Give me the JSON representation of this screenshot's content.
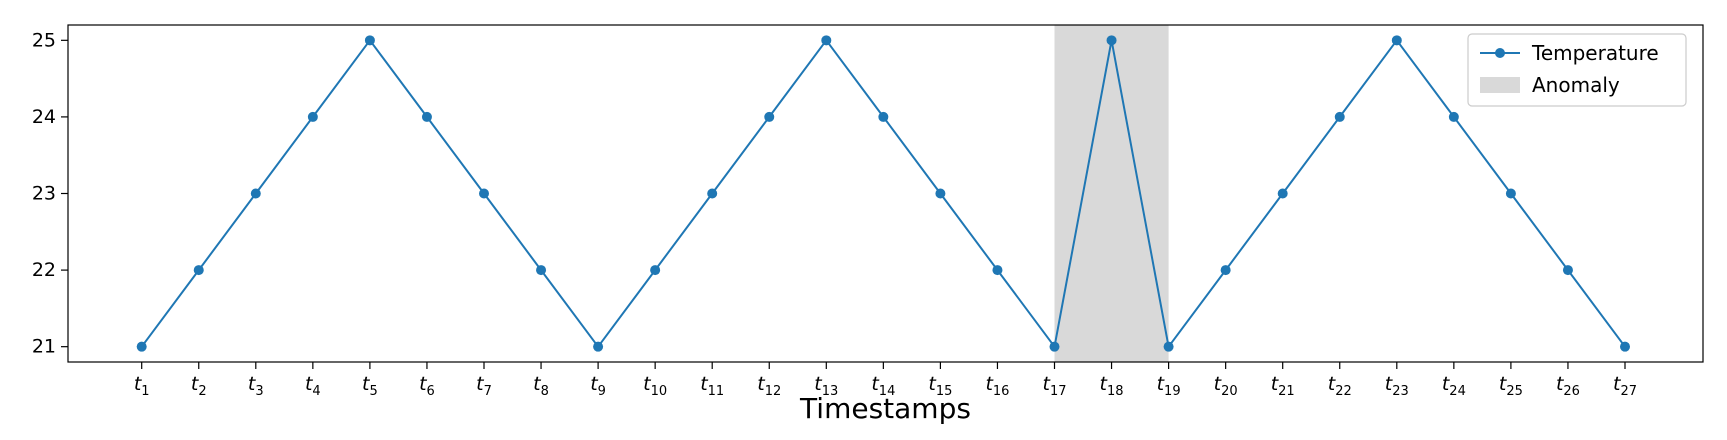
{
  "chart_data": {
    "type": "line",
    "title": "",
    "xlabel": "Timestamps",
    "ylabel": "",
    "categories": [
      "t1",
      "t2",
      "t3",
      "t4",
      "t5",
      "t6",
      "t7",
      "t8",
      "t9",
      "t10",
      "t11",
      "t12",
      "t13",
      "t14",
      "t15",
      "t16",
      "t17",
      "t18",
      "t19",
      "t20",
      "t21",
      "t22",
      "t23",
      "t24",
      "t25",
      "t26",
      "t27"
    ],
    "tick_labels": [
      {
        "base": "t",
        "sub": "1"
      },
      {
        "base": "t",
        "sub": "2"
      },
      {
        "base": "t",
        "sub": "3"
      },
      {
        "base": "t",
        "sub": "4"
      },
      {
        "base": "t",
        "sub": "5"
      },
      {
        "base": "t",
        "sub": "6"
      },
      {
        "base": "t",
        "sub": "7"
      },
      {
        "base": "t",
        "sub": "8"
      },
      {
        "base": "t",
        "sub": "9"
      },
      {
        "base": "t",
        "sub": "10"
      },
      {
        "base": "t",
        "sub": "11"
      },
      {
        "base": "t",
        "sub": "12"
      },
      {
        "base": "t",
        "sub": "13"
      },
      {
        "base": "t",
        "sub": "14"
      },
      {
        "base": "t",
        "sub": "15"
      },
      {
        "base": "t",
        "sub": "16"
      },
      {
        "base": "t",
        "sub": "17"
      },
      {
        "base": "t",
        "sub": "18"
      },
      {
        "base": "t",
        "sub": "19"
      },
      {
        "base": "t",
        "sub": "20"
      },
      {
        "base": "t",
        "sub": "21"
      },
      {
        "base": "t",
        "sub": "22"
      },
      {
        "base": "t",
        "sub": "23"
      },
      {
        "base": "t",
        "sub": "24"
      },
      {
        "base": "t",
        "sub": "25"
      },
      {
        "base": "t",
        "sub": "26"
      },
      {
        "base": "t",
        "sub": "27"
      }
    ],
    "series": [
      {
        "name": "Temperature",
        "color": "#1f77b4",
        "values": [
          21,
          22,
          23,
          24,
          25,
          24,
          23,
          22,
          21,
          22,
          23,
          24,
          25,
          24,
          23,
          22,
          21,
          25,
          21,
          22,
          23,
          24,
          25,
          24,
          23,
          22,
          21
        ]
      }
    ],
    "anomaly_region": {
      "name": "Anomaly",
      "x_start": "t17",
      "x_end": "t19",
      "color": "#d9d9d9"
    },
    "yticks": [
      21,
      22,
      23,
      24,
      25
    ],
    "ylim": [
      20.8,
      25.2
    ],
    "grid": false,
    "legend": "top-right"
  }
}
